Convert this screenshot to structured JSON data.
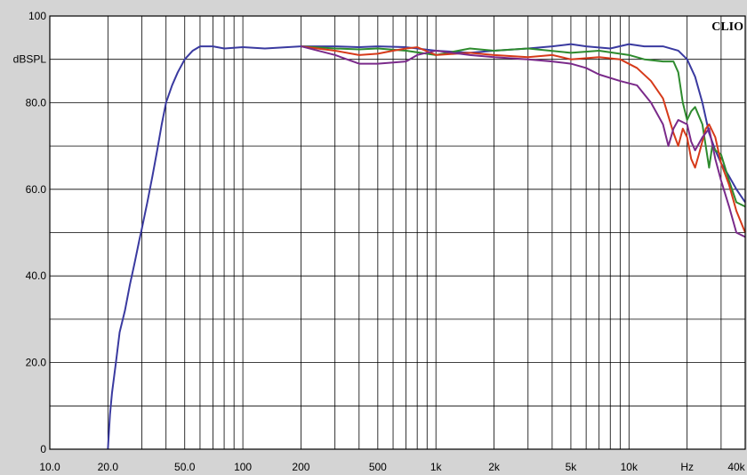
{
  "chart_data": {
    "type": "line",
    "title": "",
    "brand": "CLIO",
    "ylabel": "dBSPL",
    "xlabel": "Hz",
    "x_scale": "log",
    "xlim": [
      10,
      40000
    ],
    "ylim": [
      0,
      100
    ],
    "grid": true,
    "legend": "none",
    "x_ticks": [
      {
        "value": 10,
        "label": "10.0"
      },
      {
        "value": 20,
        "label": "20.0"
      },
      {
        "value": 50,
        "label": "50.0"
      },
      {
        "value": 100,
        "label": "100"
      },
      {
        "value": 200,
        "label": "200"
      },
      {
        "value": 500,
        "label": "500"
      },
      {
        "value": 1000,
        "label": "1k"
      },
      {
        "value": 2000,
        "label": "2k"
      },
      {
        "value": 5000,
        "label": "5k"
      },
      {
        "value": 10000,
        "label": "10k"
      },
      {
        "value": 20000,
        "label": "Hz"
      },
      {
        "value": 40000,
        "label": "40k"
      }
    ],
    "y_ticks": [
      {
        "value": 0,
        "label": "0"
      },
      {
        "value": 20,
        "label": "20.0"
      },
      {
        "value": 40,
        "label": "40.0"
      },
      {
        "value": 60,
        "label": "60.0"
      },
      {
        "value": 80,
        "label": "80.0"
      },
      {
        "value": 90,
        "label": "dBSPL"
      },
      {
        "value": 100,
        "label": "100"
      }
    ],
    "series": [
      {
        "color": "#3a3aa0",
        "points": [
          [
            20,
            0
          ],
          [
            20.5,
            8
          ],
          [
            21,
            13
          ],
          [
            22,
            20
          ],
          [
            23,
            27
          ],
          [
            24.5,
            32
          ],
          [
            26,
            38
          ],
          [
            27.5,
            43
          ],
          [
            29,
            48
          ],
          [
            30,
            51
          ],
          [
            32,
            57
          ],
          [
            34,
            63
          ],
          [
            36,
            69
          ],
          [
            38,
            75
          ],
          [
            40,
            80
          ],
          [
            43,
            84
          ],
          [
            46,
            87
          ],
          [
            50,
            90
          ],
          [
            55,
            92
          ],
          [
            60,
            93
          ],
          [
            70,
            93
          ],
          [
            80,
            92.5
          ],
          [
            100,
            92.8
          ],
          [
            130,
            92.5
          ],
          [
            200,
            93
          ],
          [
            300,
            93
          ],
          [
            400,
            92.8
          ],
          [
            500,
            93
          ],
          [
            700,
            92.8
          ],
          [
            1000,
            92
          ],
          [
            1500,
            91.5
          ],
          [
            2000,
            92
          ],
          [
            3000,
            92.5
          ],
          [
            4000,
            93
          ],
          [
            5000,
            93.5
          ],
          [
            6000,
            93
          ],
          [
            8000,
            92.5
          ],
          [
            10000,
            93.5
          ],
          [
            12000,
            93
          ],
          [
            15000,
            93
          ],
          [
            18000,
            92
          ],
          [
            20000,
            90
          ],
          [
            22000,
            86
          ],
          [
            24000,
            80
          ],
          [
            26000,
            73
          ],
          [
            28000,
            69
          ],
          [
            30000,
            66
          ],
          [
            33000,
            63
          ],
          [
            36000,
            60
          ],
          [
            40000,
            57
          ]
        ]
      },
      {
        "color": "#2e8b2e",
        "points": [
          [
            200,
            93
          ],
          [
            300,
            92.5
          ],
          [
            400,
            92.3
          ],
          [
            500,
            92.5
          ],
          [
            700,
            92
          ],
          [
            1000,
            91
          ],
          [
            1500,
            92.5
          ],
          [
            2000,
            92
          ],
          [
            3000,
            92.5
          ],
          [
            5000,
            91.5
          ],
          [
            7000,
            92
          ],
          [
            10000,
            91
          ],
          [
            12000,
            90
          ],
          [
            15000,
            89.5
          ],
          [
            17000,
            89.5
          ],
          [
            18000,
            87
          ],
          [
            19000,
            80
          ],
          [
            20000,
            76
          ],
          [
            21000,
            78
          ],
          [
            22000,
            79
          ],
          [
            24000,
            75
          ],
          [
            26000,
            65
          ],
          [
            27000,
            70
          ],
          [
            28000,
            69
          ],
          [
            30000,
            68
          ],
          [
            33000,
            62
          ],
          [
            36000,
            57
          ],
          [
            40000,
            56
          ]
        ]
      },
      {
        "color": "#d63a1a",
        "points": [
          [
            200,
            93
          ],
          [
            300,
            92
          ],
          [
            400,
            91
          ],
          [
            500,
            91.3
          ],
          [
            600,
            92
          ],
          [
            700,
            92.5
          ],
          [
            800,
            92.8
          ],
          [
            1000,
            91
          ],
          [
            1500,
            91.5
          ],
          [
            2000,
            91
          ],
          [
            3000,
            90.5
          ],
          [
            4000,
            91
          ],
          [
            5000,
            90
          ],
          [
            7000,
            90.5
          ],
          [
            9000,
            90
          ],
          [
            11000,
            88
          ],
          [
            13000,
            85
          ],
          [
            15000,
            81
          ],
          [
            17000,
            73
          ],
          [
            18000,
            70
          ],
          [
            19000,
            74
          ],
          [
            20000,
            72
          ],
          [
            21000,
            67
          ],
          [
            22000,
            65
          ],
          [
            23000,
            68
          ],
          [
            25000,
            74
          ],
          [
            26000,
            75
          ],
          [
            28000,
            72
          ],
          [
            30000,
            66
          ],
          [
            33000,
            61
          ],
          [
            36000,
            55
          ],
          [
            40000,
            50
          ]
        ]
      },
      {
        "color": "#7a2a8a",
        "points": [
          [
            200,
            93
          ],
          [
            300,
            91
          ],
          [
            400,
            89
          ],
          [
            500,
            89
          ],
          [
            700,
            89.5
          ],
          [
            800,
            91
          ],
          [
            1000,
            92
          ],
          [
            1500,
            91
          ],
          [
            2000,
            90.5
          ],
          [
            3000,
            90
          ],
          [
            4000,
            89.5
          ],
          [
            5000,
            89
          ],
          [
            6000,
            88
          ],
          [
            7000,
            86.5
          ],
          [
            9000,
            85
          ],
          [
            11000,
            84
          ],
          [
            13000,
            80
          ],
          [
            15000,
            75
          ],
          [
            16000,
            70
          ],
          [
            17000,
            74
          ],
          [
            18000,
            76
          ],
          [
            20000,
            75
          ],
          [
            21000,
            71
          ],
          [
            22000,
            69
          ],
          [
            24000,
            72
          ],
          [
            26000,
            74
          ],
          [
            28000,
            67
          ],
          [
            30000,
            62
          ],
          [
            33000,
            56
          ],
          [
            36000,
            50
          ],
          [
            40000,
            49
          ]
        ]
      }
    ]
  },
  "colors": {
    "background": "#d4d4d4",
    "plot_background": "#ffffff",
    "grid": "#000000"
  }
}
